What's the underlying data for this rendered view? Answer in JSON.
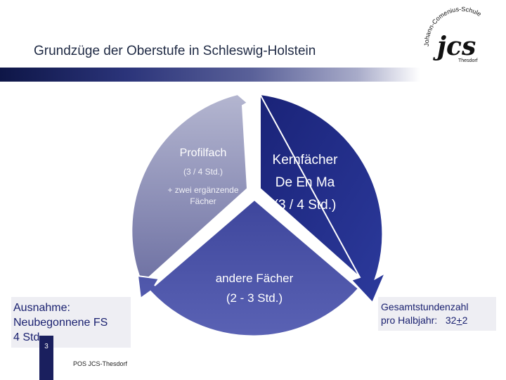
{
  "header": {
    "title": "Grundzüge der Oberstufe in Schleswig-Holstein",
    "logo": {
      "arc_text": "Johann-Comenius-Schule",
      "letters": "jcs",
      "place": "Thesdorf"
    }
  },
  "diagram": {
    "segments": [
      {
        "id": "profil",
        "title": "Profilfach",
        "hours": "(3 / 4 Std.)",
        "extra": "+ zwei ergänzende Fächer",
        "color": "#8a8cb2"
      },
      {
        "id": "kern",
        "title": "Kernfächer",
        "subjects": "De En Ma",
        "hours": "(3 / 4 Std.)",
        "color": "#1f2a85"
      },
      {
        "id": "andere",
        "title": "andere Fächer",
        "hours": "(2 - 3 Std.)",
        "color": "#3d4399"
      }
    ]
  },
  "notes": {
    "exception": {
      "line1": "Ausnahme:",
      "line2": "Neubegonnene FS",
      "line3": "4 Std."
    },
    "total": {
      "line1": "Gesamtstundenzahl",
      "label": "pro Halbjahr:",
      "value_base": "32",
      "value_pm": "+",
      "value_delta": "2"
    }
  },
  "footer": {
    "page": "3",
    "text": "POS JCS-Thesdorf"
  },
  "colors": {
    "title_text": "#1f2a44",
    "accent": "#1a2170",
    "bar_dark": "#0e1647"
  }
}
